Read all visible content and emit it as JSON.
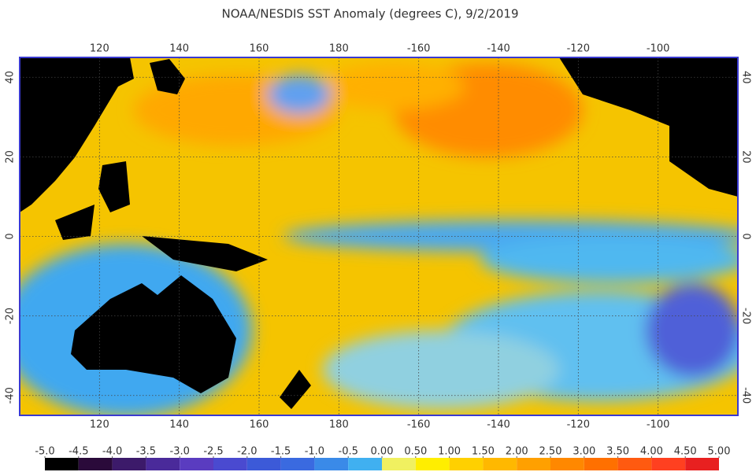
{
  "title": "NOAA/NESDIS SST Anomaly (degrees C), 9/2/2019",
  "map": {
    "xlim": [
      100,
      280
    ],
    "ylim": [
      -45,
      45
    ],
    "xticks": [
      120,
      140,
      160,
      180,
      {
        "value": 200,
        "label": "-160"
      },
      {
        "value": 220,
        "label": "-140"
      },
      {
        "value": 240,
        "label": "-120"
      },
      {
        "value": 260,
        "label": "-100"
      }
    ],
    "yticks": [
      -40,
      -20,
      0,
      20,
      40
    ],
    "grid": true,
    "border_color": "#3a3ad0"
  },
  "colorbar": {
    "ticks": [
      {
        "value": -5,
        "label": "-5.0"
      },
      {
        "value": -4.5,
        "label": "-4.5"
      },
      {
        "value": -4,
        "label": "-4.0"
      },
      {
        "value": -3.5,
        "label": "-3.5"
      },
      {
        "value": -3,
        "label": "-3.0"
      },
      {
        "value": -2.5,
        "label": "-2.5"
      },
      {
        "value": -2,
        "label": "-2.0"
      },
      {
        "value": -1.5,
        "label": "-1.5"
      },
      {
        "value": -1,
        "label": "-1.0"
      },
      {
        "value": -0.5,
        "label": "-0.5"
      },
      {
        "value": 0,
        "label": "0.00"
      },
      {
        "value": 0.5,
        "label": "0.50"
      },
      {
        "value": 1,
        "label": "1.00"
      },
      {
        "value": 1.5,
        "label": "1.50"
      },
      {
        "value": 2,
        "label": "2.00"
      },
      {
        "value": 2.5,
        "label": "2.50"
      },
      {
        "value": 3,
        "label": "3.00"
      },
      {
        "value": 3.5,
        "label": "3.50"
      },
      {
        "value": 4,
        "label": "4.00"
      },
      {
        "value": 4.5,
        "label": "4.50"
      },
      {
        "value": 5,
        "label": "5.00"
      }
    ],
    "colors": [
      "#000000",
      "#2a0a3a",
      "#3c1a6a",
      "#4a2a9a",
      "#5a3cc0",
      "#4a4ad0",
      "#3c5ad8",
      "#3a6ae0",
      "#3a8ae8",
      "#40b0f0",
      "#f0f060",
      "#ffee00",
      "#ffd000",
      "#ffb800",
      "#ffa000",
      "#ff8800",
      "#ff7000",
      "#ff5a10",
      "#ff4020",
      "#e82020"
    ]
  }
}
